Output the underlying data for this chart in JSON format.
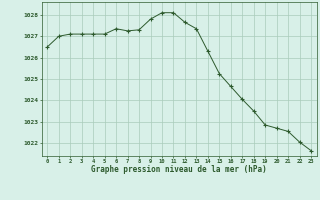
{
  "x": [
    0,
    1,
    2,
    3,
    4,
    5,
    6,
    7,
    8,
    9,
    10,
    11,
    12,
    13,
    14,
    15,
    16,
    17,
    18,
    19,
    20,
    21,
    22,
    23
  ],
  "y": [
    1026.5,
    1027.0,
    1027.1,
    1027.1,
    1027.1,
    1027.1,
    1027.35,
    1027.25,
    1027.3,
    1027.8,
    1028.1,
    1028.1,
    1027.65,
    1027.35,
    1026.3,
    1025.25,
    1024.65,
    1024.05,
    1023.5,
    1022.85,
    1022.7,
    1022.55,
    1022.05,
    1021.65
  ],
  "line_color": "#2d5a2d",
  "marker": "+",
  "marker_color": "#2d5a2d",
  "marker_size": 3,
  "bg_color": "#d8f0e8",
  "grid_color": "#aaccbb",
  "xlabel": "Graphe pression niveau de la mer (hPa)",
  "xlabel_color": "#2d5a2d",
  "tick_color": "#2d5a2d",
  "ylabel_ticks": [
    1022,
    1023,
    1024,
    1025,
    1026,
    1027,
    1028
  ],
  "xlim": [
    -0.5,
    23.5
  ],
  "ylim": [
    1021.4,
    1028.6
  ],
  "xticks": [
    0,
    1,
    2,
    3,
    4,
    5,
    6,
    7,
    8,
    9,
    10,
    11,
    12,
    13,
    14,
    15,
    16,
    17,
    18,
    19,
    20,
    21,
    22,
    23
  ]
}
